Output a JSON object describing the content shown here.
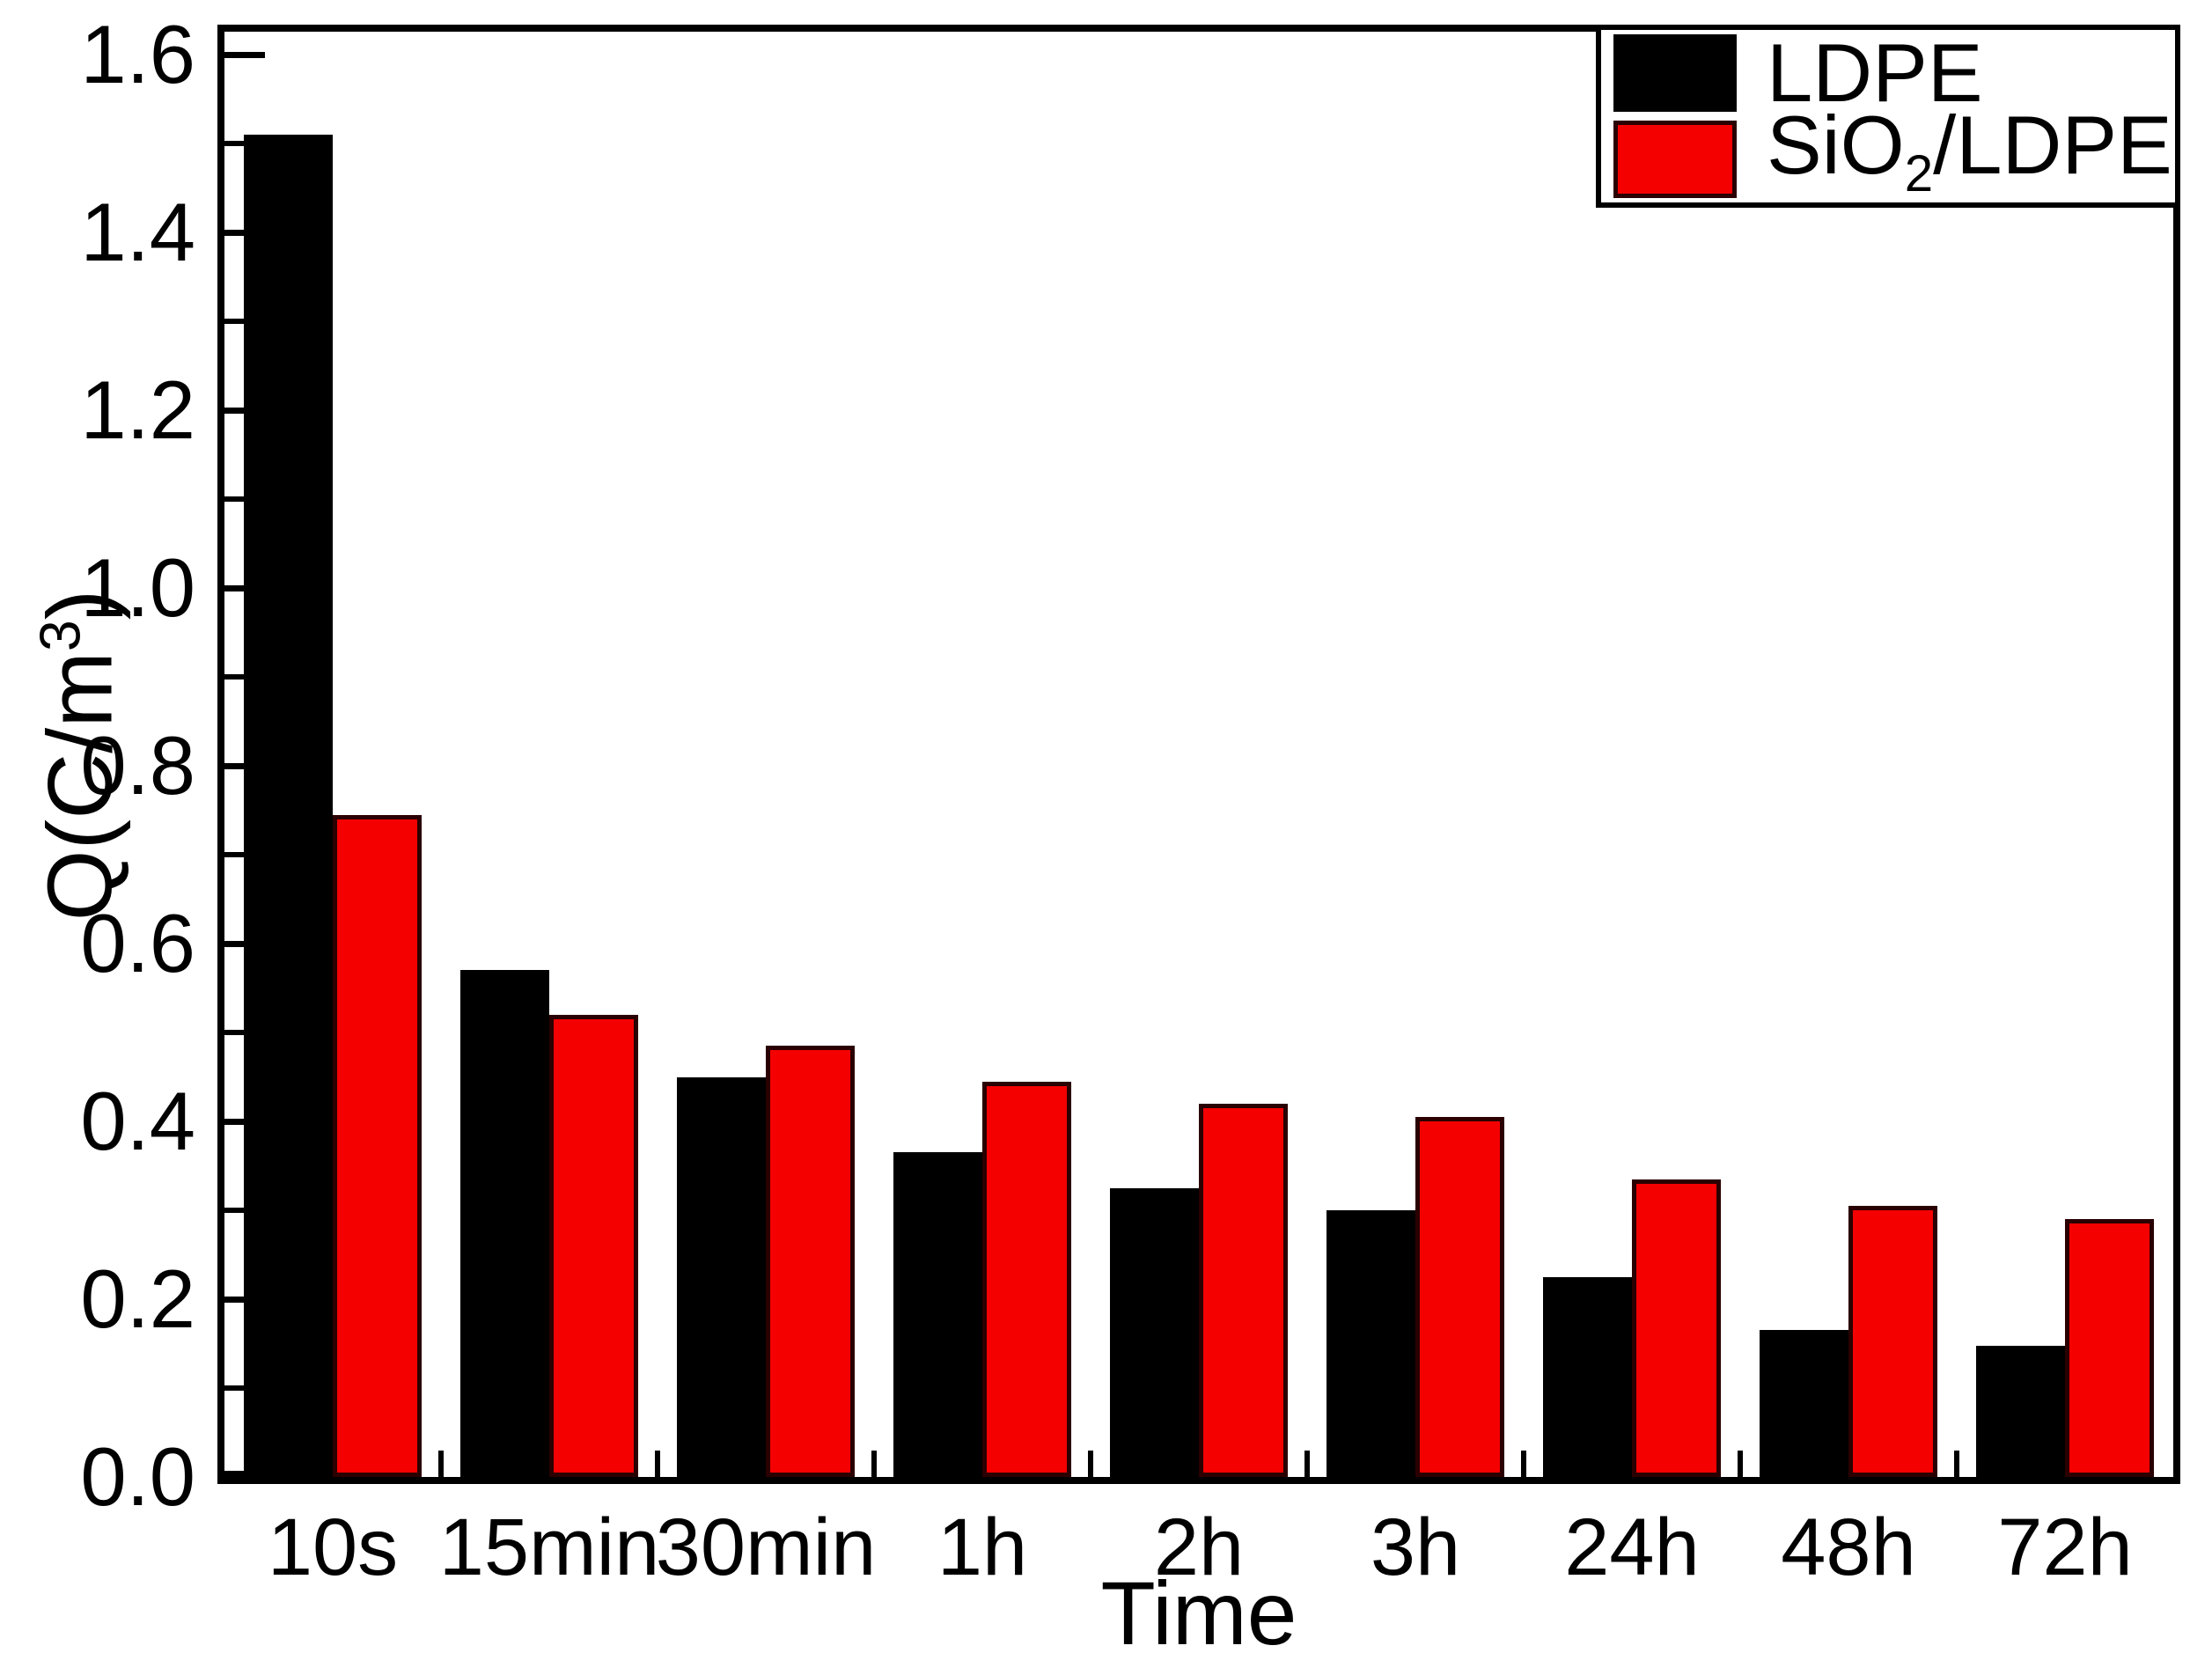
{
  "figure": {
    "background": "#ffffff",
    "axis_color": "#000000",
    "text_color": "#000000"
  },
  "chart_data": {
    "type": "bar",
    "categories": [
      "10s",
      "15min",
      "30min",
      "1h",
      "2h",
      "3h",
      "24h",
      "48h",
      "72h"
    ],
    "series": [
      {
        "name": "LDPE",
        "color": "#000000",
        "edge_color": "#000000",
        "values": [
          1.51,
          0.57,
          0.45,
          0.365,
          0.325,
          0.3,
          0.225,
          0.165,
          0.148
        ]
      },
      {
        "name": "SiO2/LDPE",
        "name_parts": {
          "pre": "SiO",
          "sub": "2",
          "post": "/LDPE"
        },
        "color": "#f50000",
        "edge_color": "#2a0000",
        "values": [
          0.745,
          0.52,
          0.485,
          0.445,
          0.42,
          0.405,
          0.335,
          0.305,
          0.29
        ]
      }
    ],
    "xlabel": "Time",
    "ylabel": "Q(C/m³)",
    "ylabel_parts": {
      "pre": "Q(C/m",
      "sup": "3",
      "post": ")"
    },
    "ylim": [
      0,
      1.626
    ],
    "ytick_values": [
      0.0,
      0.2,
      0.4,
      0.6,
      0.8,
      1.0,
      1.2,
      1.4,
      1.6
    ],
    "ytick_labels": [
      "0.0",
      "0.2",
      "0.4",
      "0.6",
      "0.8",
      "1.0",
      "1.2",
      "1.4",
      "1.6"
    ],
    "minor_tick_values": [
      0.1,
      0.3,
      0.5,
      0.7,
      0.9,
      1.1,
      1.3,
      1.5
    ],
    "grid": false,
    "legend_position": "top-right"
  }
}
